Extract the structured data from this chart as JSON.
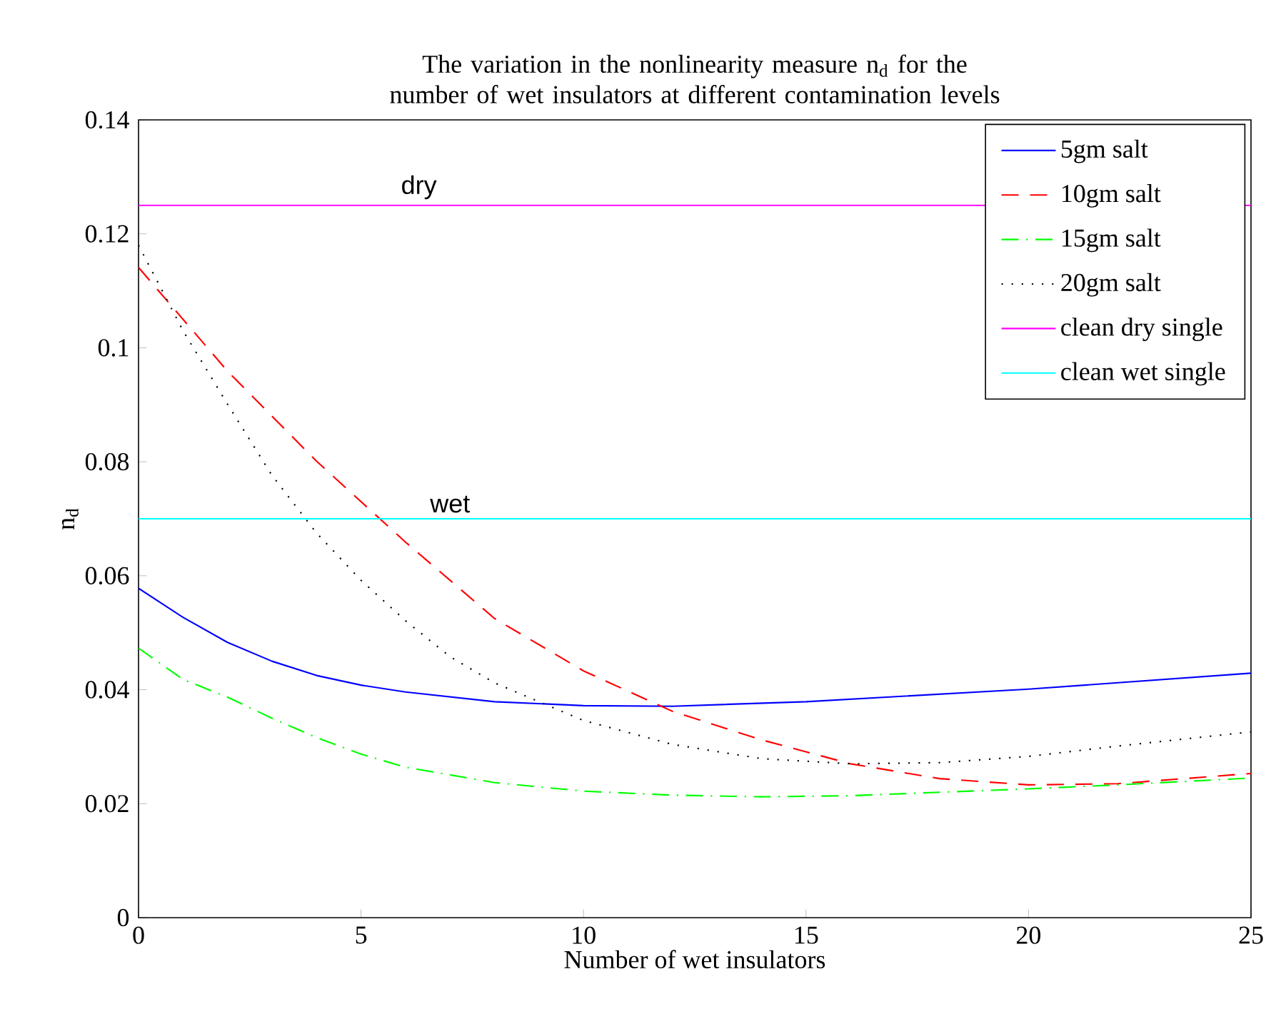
{
  "chart_data": {
    "type": "line",
    "title": "The variation in the nonlinearity measure n$_{d}$ for the number of wet insulators at different contamination levels",
    "xlabel": "Number of wet insulators",
    "ylabel": "n$_{d}$",
    "xlim": [
      0,
      25
    ],
    "xticks": [
      0,
      5,
      10,
      15,
      20,
      25
    ],
    "ylim": [
      0,
      0.14
    ],
    "yticks": [
      0,
      0.02,
      0.04,
      0.06,
      0.08,
      0.1,
      0.12,
      0.14
    ],
    "legend": "top right",
    "grid": false,
    "series": [
      {
        "name": "5gm salt",
        "color": "#0000ff",
        "line_style": "solid",
        "x": [
          0,
          1,
          2,
          3,
          4,
          5,
          6,
          8,
          10,
          12,
          15,
          20,
          25
        ],
        "values": [
          0.0578,
          0.0527,
          0.0483,
          0.045,
          0.0425,
          0.0408,
          0.0396,
          0.0379,
          0.0372,
          0.0371,
          0.0379,
          0.0401,
          0.0429
        ]
      },
      {
        "name": "10gm salt",
        "color": "#ff0000",
        "line_style": "dashed",
        "x": [
          0,
          2,
          4,
          6,
          8,
          10,
          12,
          14,
          16,
          18,
          20,
          22,
          25
        ],
        "values": [
          0.1141,
          0.0959,
          0.0801,
          0.0659,
          0.0525,
          0.0433,
          0.0362,
          0.0312,
          0.027,
          0.0244,
          0.0233,
          0.0235,
          0.0253
        ]
      },
      {
        "name": "15gm salt",
        "color": "#00ff00",
        "line_style": "dashdot",
        "x": [
          0,
          1,
          2,
          3,
          4,
          5,
          6,
          8,
          10,
          12,
          14,
          16,
          18,
          20,
          22,
          25
        ],
        "values": [
          0.0473,
          0.0418,
          0.0387,
          0.035,
          0.0316,
          0.0287,
          0.0264,
          0.0237,
          0.0222,
          0.0215,
          0.0212,
          0.0214,
          0.022,
          0.0226,
          0.0233,
          0.0245
        ]
      },
      {
        "name": "20gm salt",
        "color": "#000000",
        "line_style": "dotted",
        "x": [
          0,
          1,
          2,
          3,
          4,
          5,
          6,
          7,
          8,
          9,
          10,
          12,
          14,
          16,
          18,
          20,
          22,
          25
        ],
        "values": [
          0.118,
          0.103,
          0.0901,
          0.0776,
          0.0675,
          0.0592,
          0.0521,
          0.0458,
          0.0412,
          0.0379,
          0.0346,
          0.0304,
          0.0279,
          0.027,
          0.0272,
          0.0283,
          0.0301,
          0.0326
        ]
      },
      {
        "name": "clean dry single",
        "color": "#ff00ff",
        "line_style": "solid",
        "x": [
          0,
          25
        ],
        "values": [
          0.125,
          0.125
        ]
      },
      {
        "name": "clean wet single",
        "color": "#00ffff",
        "line_style": "solid",
        "x": [
          0,
          25
        ],
        "values": [
          0.07,
          0.07
        ]
      }
    ],
    "annotations": [
      {
        "text": "dry",
        "x": 6.3,
        "y": 0.125
      },
      {
        "text": "wet",
        "x": 7.0,
        "y": 0.07
      }
    ]
  }
}
